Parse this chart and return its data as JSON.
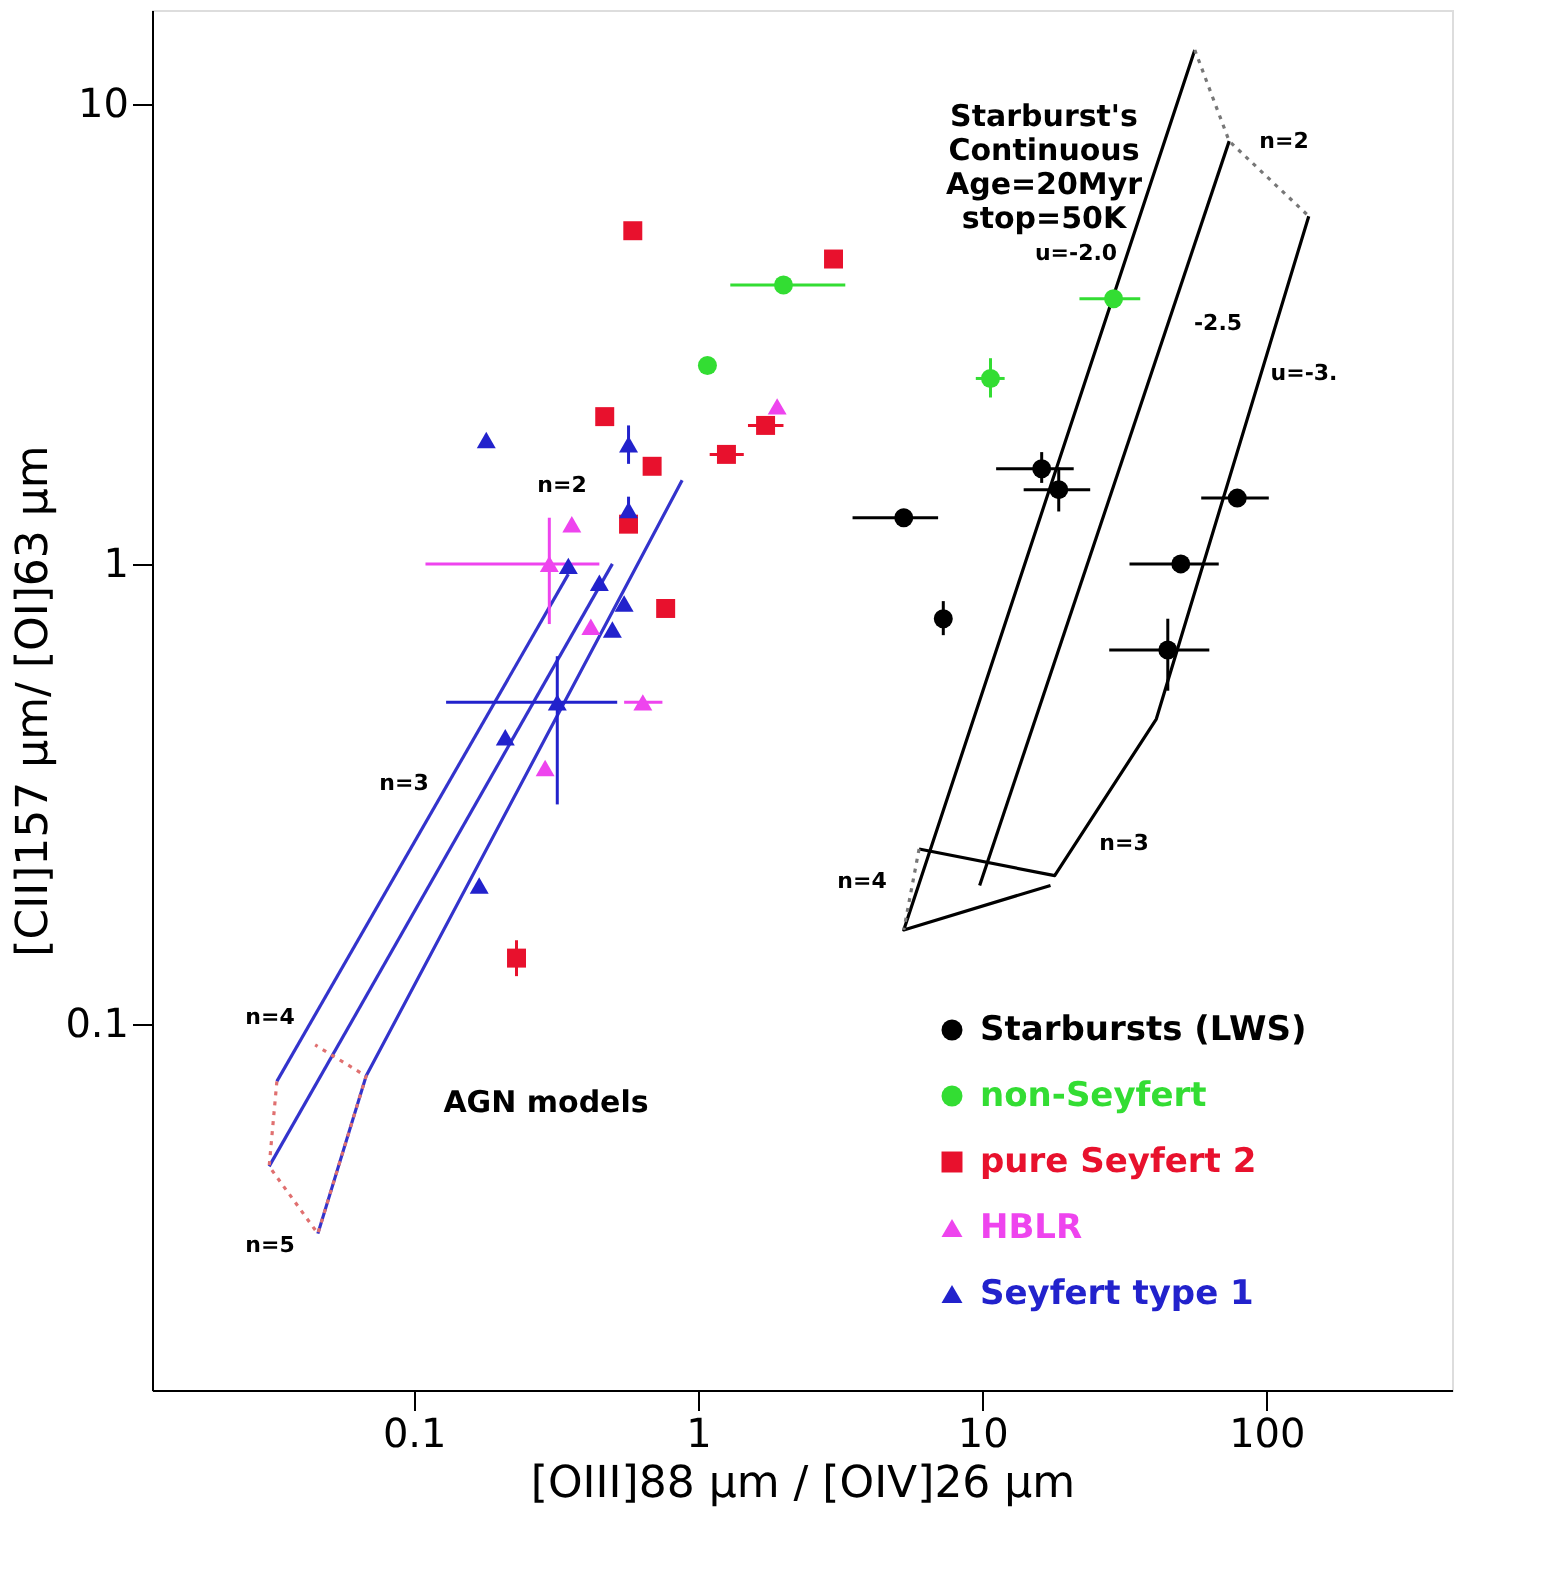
{
  "chart_data": {
    "type": "scatter",
    "xlabel": "[OIII]88 μm / [OIV]26 μm",
    "ylabel": "[CII]157 μm/ [OI]63 μm",
    "log": "xy",
    "xlim": [
      0.012,
      450
    ],
    "ylim": [
      0.016,
      16
    ],
    "xticks": [
      0.1,
      1,
      10,
      100
    ],
    "yticks": [
      0.1,
      1,
      10
    ],
    "grid": false,
    "legend": "bottom right",
    "series": [
      {
        "name": "Starbursts (LWS)",
        "color": "#000000",
        "marker": "circle",
        "x": [
          5.3,
          7.3,
          16.2,
          18.6,
          79,
          50,
          45
        ],
        "values": [
          1.26,
          0.76,
          1.61,
          1.45,
          1.39,
          1.0,
          0.65
        ],
        "xerrors": [
          [
            3.5,
            7.0
          ],
          null,
          [
            11.2,
            21
          ],
          [
            14,
            24
          ],
          [
            59,
            102
          ],
          [
            33,
            68
          ],
          [
            28,
            63
          ]
        ],
        "errors": [
          null,
          [
            0.7,
            0.83
          ],
          [
            1.5,
            1.75
          ],
          [
            1.3,
            1.62
          ],
          null,
          null,
          [
            0.53,
            0.76
          ]
        ]
      },
      {
        "name": "non-Seyfert",
        "color": "#33dd33",
        "marker": "circle",
        "x": [
          2.0,
          1.08,
          29,
          10.7
        ],
        "values": [
          4.04,
          2.7,
          3.77,
          2.53
        ],
        "xerrors": [
          [
            1.3,
            3.3
          ],
          null,
          [
            22,
            36
          ],
          [
            9.5,
            12
          ]
        ],
        "errors": [
          null,
          null,
          null,
          [
            2.3,
            2.8
          ]
        ]
      },
      {
        "name": "pure Seyfert 2",
        "color": "#e8112d",
        "marker": "square",
        "x": [
          0.59,
          3.0,
          0.47,
          0.69,
          1.26,
          1.73,
          0.57,
          0.77,
          0.23
        ],
        "values": [
          5.3,
          4.6,
          2.09,
          1.63,
          1.73,
          2.0,
          1.22,
          0.8,
          0.139
        ],
        "xerrors": [
          null,
          null,
          null,
          null,
          [
            1.1,
            1.45
          ],
          [
            1.5,
            2.0
          ],
          null,
          null,
          null
        ],
        "errors": [
          null,
          null,
          null,
          null,
          null,
          null,
          null,
          null,
          [
            0.127,
            0.152
          ]
        ]
      },
      {
        "name": "HBLR",
        "color": "#ee44ee",
        "marker": "triangle",
        "x": [
          1.9,
          0.36,
          0.3,
          0.42,
          0.64,
          0.29
        ],
        "values": [
          2.2,
          1.22,
          1.0,
          0.73,
          0.5,
          0.36
        ],
        "xerrors": [
          null,
          null,
          [
            0.11,
            0.45
          ],
          null,
          [
            0.55,
            0.75
          ],
          null
        ],
        "errors": [
          null,
          null,
          [
            0.74,
            1.26
          ],
          null,
          null,
          null
        ]
      },
      {
        "name": "Seyfert type 1",
        "color": "#2222cc",
        "marker": "triangle",
        "x": [
          0.18,
          0.57,
          0.57,
          0.45,
          0.35,
          0.55,
          0.5,
          0.32,
          0.21,
          0.17
        ],
        "values": [
          1.86,
          1.82,
          1.31,
          0.91,
          0.99,
          0.82,
          0.72,
          0.5,
          0.42,
          0.2
        ],
        "xerrors": [
          null,
          null,
          null,
          null,
          null,
          null,
          null,
          [
            0.13,
            0.52
          ],
          null,
          null
        ],
        "errors": [
          null,
          [
            1.65,
            2.0
          ],
          [
            1.22,
            1.4
          ],
          null,
          null,
          null,
          null,
          [
            0.3,
            0.63
          ],
          null,
          null
        ]
      },
      {
        "type": "line",
        "color": "#3333cc",
        "line_style": "solid",
        "x": [
          0.033,
          0.35
        ],
        "values": [
          0.075,
          0.95
        ]
      },
      {
        "type": "line",
        "color": "#3333cc",
        "line_style": "solid",
        "x": [
          0.031,
          0.5
        ],
        "values": [
          0.049,
          1.0
        ]
      },
      {
        "type": "line",
        "color": "#3333cc",
        "line_style": "solid",
        "x": [
          0.046,
          0.068,
          0.88
        ],
        "values": [
          0.035,
          0.077,
          1.52
        ]
      },
      {
        "type": "line",
        "color": "#e07070",
        "line_style": "dotted",
        "x": [
          0.033,
          0.031,
          0.046,
          0.068,
          0.045
        ],
        "values": [
          0.075,
          0.049,
          0.035,
          0.077,
          0.09
        ]
      },
      {
        "type": "line",
        "color": "#000000",
        "line_style": "solid",
        "x": [
          56,
          5.3,
          17.4
        ],
        "values": [
          13.1,
          0.16,
          0.2
        ]
      },
      {
        "type": "line",
        "color": "#000000",
        "line_style": "solid",
        "x": [
          74,
          9.8
        ],
        "values": [
          8.3,
          0.2
        ]
      },
      {
        "type": "line",
        "color": "#000000",
        "line_style": "solid",
        "x": [
          141,
          41,
          18,
          6.0
        ],
        "values": [
          5.7,
          0.46,
          0.21,
          0.24
        ]
      },
      {
        "type": "line",
        "color": "#777777",
        "line_style": "dotted",
        "x": [
          56,
          74,
          141
        ],
        "values": [
          13.1,
          8.3,
          5.7
        ]
      },
      {
        "type": "line",
        "color": "#777777",
        "line_style": "dotted",
        "x": [
          6.0,
          5.3
        ],
        "values": [
          0.24,
          0.16
        ]
      }
    ],
    "annotations": [
      "Starburst's\nContinuous\nAge=20Myr\nstop=50K",
      "n=2",
      "u=-2.0",
      "-2.5",
      "u=-3.",
      "n=3",
      "n=4",
      "n=2",
      "n=3",
      "n=4",
      "n=5",
      "AGN models"
    ]
  }
}
